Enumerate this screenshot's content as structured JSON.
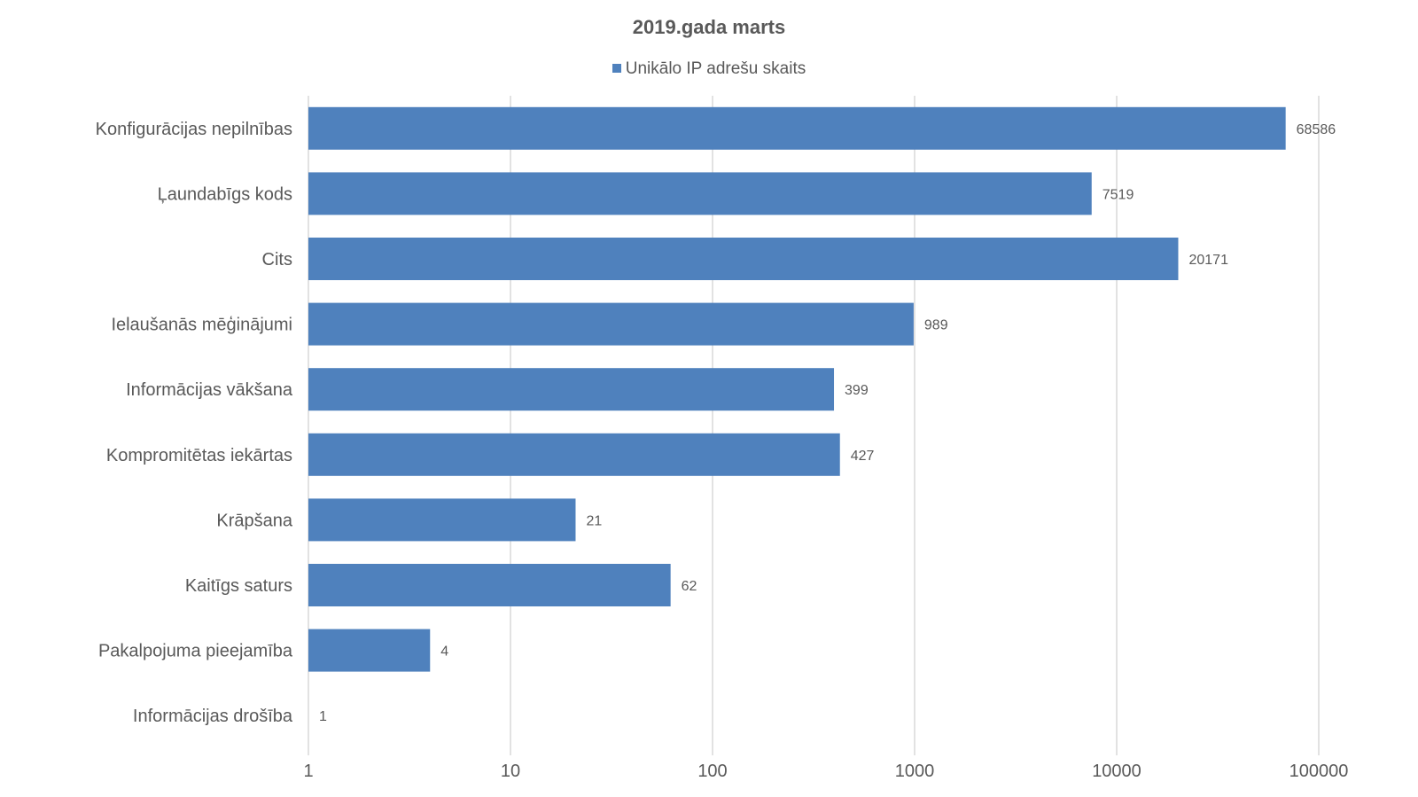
{
  "chart_data": {
    "type": "bar",
    "orientation": "horizontal",
    "title": "2019.gada marts",
    "xlabel": "",
    "ylabel": "",
    "x_scale": "log",
    "xlim": [
      1,
      100000
    ],
    "x_ticks": [
      "1",
      "10",
      "100",
      "1000",
      "10000",
      "100000"
    ],
    "grid": "vertical",
    "legend_position": "top",
    "categories": [
      "Konfigurācijas nepilnības",
      "Ļaundabīgs kods",
      "Cits",
      "Ielaušanās mēģinājumi",
      "Informācijas vākšana",
      "Kompromitētas iekārtas",
      "Krāpšana",
      "Kaitīgs saturs",
      "Pakalpojuma pieejamība",
      "Informācijas drošība"
    ],
    "series": [
      {
        "name": "Unikālo IP adrešu skaits",
        "color": "#4f81bd",
        "values": [
          68586,
          7519,
          20171,
          989,
          399,
          427,
          21,
          62,
          4,
          1
        ]
      }
    ],
    "colors": {
      "text": "#595959",
      "grid": "#d9d9d9",
      "bar": "#4f81bd"
    }
  }
}
